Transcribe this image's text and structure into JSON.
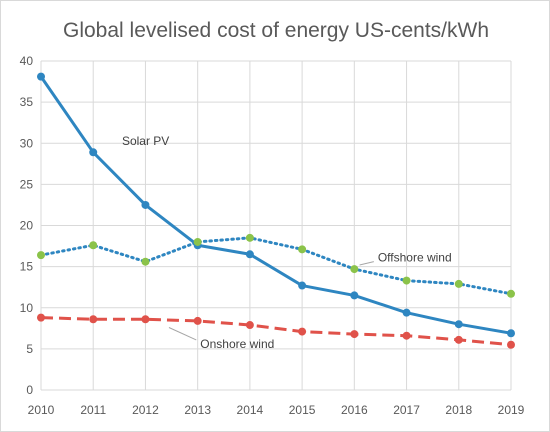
{
  "chart_data": {
    "type": "line",
    "title": "Global levelised cost of energy US-cents/kWh",
    "xlabel": "",
    "ylabel": "",
    "x": [
      2010,
      2011,
      2012,
      2013,
      2014,
      2015,
      2016,
      2017,
      2018,
      2019
    ],
    "ylim": [
      0,
      40
    ],
    "yticks": [
      0,
      5,
      10,
      15,
      20,
      25,
      30,
      35,
      40
    ],
    "grid": true,
    "legend": "none",
    "series": [
      {
        "name": "Solar PV",
        "values": [
          38.1,
          28.9,
          22.5,
          17.6,
          16.5,
          12.7,
          11.5,
          9.4,
          8.0,
          6.9
        ],
        "color": "#2e86c1",
        "style": "solid",
        "marker_color": "#2e86c1"
      },
      {
        "name": "Offshore wind",
        "values": [
          16.4,
          17.6,
          15.6,
          18.0,
          18.5,
          17.1,
          14.7,
          13.3,
          12.9,
          11.7
        ],
        "color": "#2e86c1",
        "style": "dotted",
        "marker_color": "#8bc34a"
      },
      {
        "name": "Onshore wind",
        "values": [
          8.8,
          8.6,
          8.6,
          8.4,
          7.9,
          7.1,
          6.8,
          6.6,
          6.1,
          5.5
        ],
        "color": "#e0524a",
        "style": "dashed",
        "marker_color": "#e0524a"
      }
    ],
    "annotations": [
      {
        "text": "Solar PV",
        "series": 0,
        "x": 2011.55,
        "y": 30.3
      },
      {
        "text": "Offshore wind",
        "series": 1,
        "x": 2016.45,
        "y": 16.1,
        "leader_to": [
          2016.1,
          15.2
        ]
      },
      {
        "text": "Onshore wind",
        "series": 2,
        "x": 2013.05,
        "y": 5.6,
        "leader_to": [
          2012.45,
          7.6
        ]
      }
    ]
  }
}
